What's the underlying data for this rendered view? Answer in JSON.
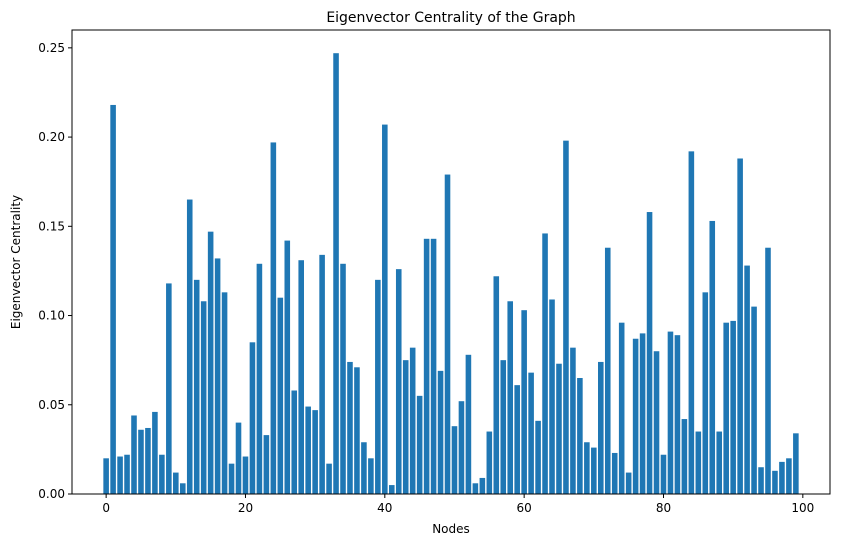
{
  "chart_data": {
    "type": "bar",
    "title": "Eigenvector Centrality of the Graph",
    "xlabel": "Nodes",
    "ylabel": "Eigenvector Centrality",
    "xlim": [
      -4.9,
      103.9
    ],
    "ylim": [
      0,
      0.26
    ],
    "xticks": [
      0,
      20,
      40,
      60,
      80,
      100
    ],
    "yticks": [
      0.0,
      0.05,
      0.1,
      0.15,
      0.2,
      0.25
    ],
    "ytick_labels": [
      "0.00",
      "0.05",
      "0.10",
      "0.15",
      "0.20",
      "0.25"
    ],
    "bar_color": "#1f77b4",
    "grid": false,
    "x": [
      0,
      1,
      2,
      3,
      4,
      5,
      6,
      7,
      8,
      9,
      10,
      11,
      12,
      13,
      14,
      15,
      16,
      17,
      18,
      19,
      20,
      21,
      22,
      23,
      24,
      25,
      26,
      27,
      28,
      29,
      30,
      31,
      32,
      33,
      34,
      35,
      36,
      37,
      38,
      39,
      40,
      41,
      42,
      43,
      44,
      45,
      46,
      47,
      48,
      49,
      50,
      51,
      52,
      53,
      54,
      55,
      56,
      57,
      58,
      59,
      60,
      61,
      62,
      63,
      64,
      65,
      66,
      67,
      68,
      69,
      70,
      71,
      72,
      73,
      74,
      75,
      76,
      77,
      78,
      79,
      80,
      81,
      82,
      83,
      84,
      85,
      86,
      87,
      88,
      89,
      90,
      91,
      92,
      93,
      94,
      95,
      96,
      97,
      98,
      99
    ],
    "values": [
      0.02,
      0.218,
      0.021,
      0.022,
      0.044,
      0.036,
      0.037,
      0.046,
      0.022,
      0.118,
      0.012,
      0.006,
      0.165,
      0.12,
      0.108,
      0.147,
      0.132,
      0.113,
      0.017,
      0.04,
      0.021,
      0.085,
      0.129,
      0.033,
      0.197,
      0.11,
      0.142,
      0.058,
      0.131,
      0.049,
      0.047,
      0.134,
      0.017,
      0.247,
      0.129,
      0.074,
      0.071,
      0.029,
      0.02,
      0.12,
      0.207,
      0.005,
      0.126,
      0.075,
      0.082,
      0.055,
      0.143,
      0.143,
      0.069,
      0.179,
      0.038,
      0.052,
      0.078,
      0.006,
      0.009,
      0.035,
      0.122,
      0.075,
      0.108,
      0.061,
      0.103,
      0.068,
      0.041,
      0.146,
      0.109,
      0.073,
      0.198,
      0.082,
      0.065,
      0.029,
      0.026,
      0.074,
      0.138,
      0.023,
      0.096,
      0.012,
      0.087,
      0.09,
      0.158,
      0.08,
      0.022,
      0.091,
      0.089,
      0.042,
      0.192,
      0.035,
      0.113,
      0.153,
      0.035,
      0.096,
      0.097,
      0.188,
      0.128,
      0.105,
      0.015,
      0.138,
      0.013,
      0.018,
      0.02,
      0.034
    ]
  }
}
